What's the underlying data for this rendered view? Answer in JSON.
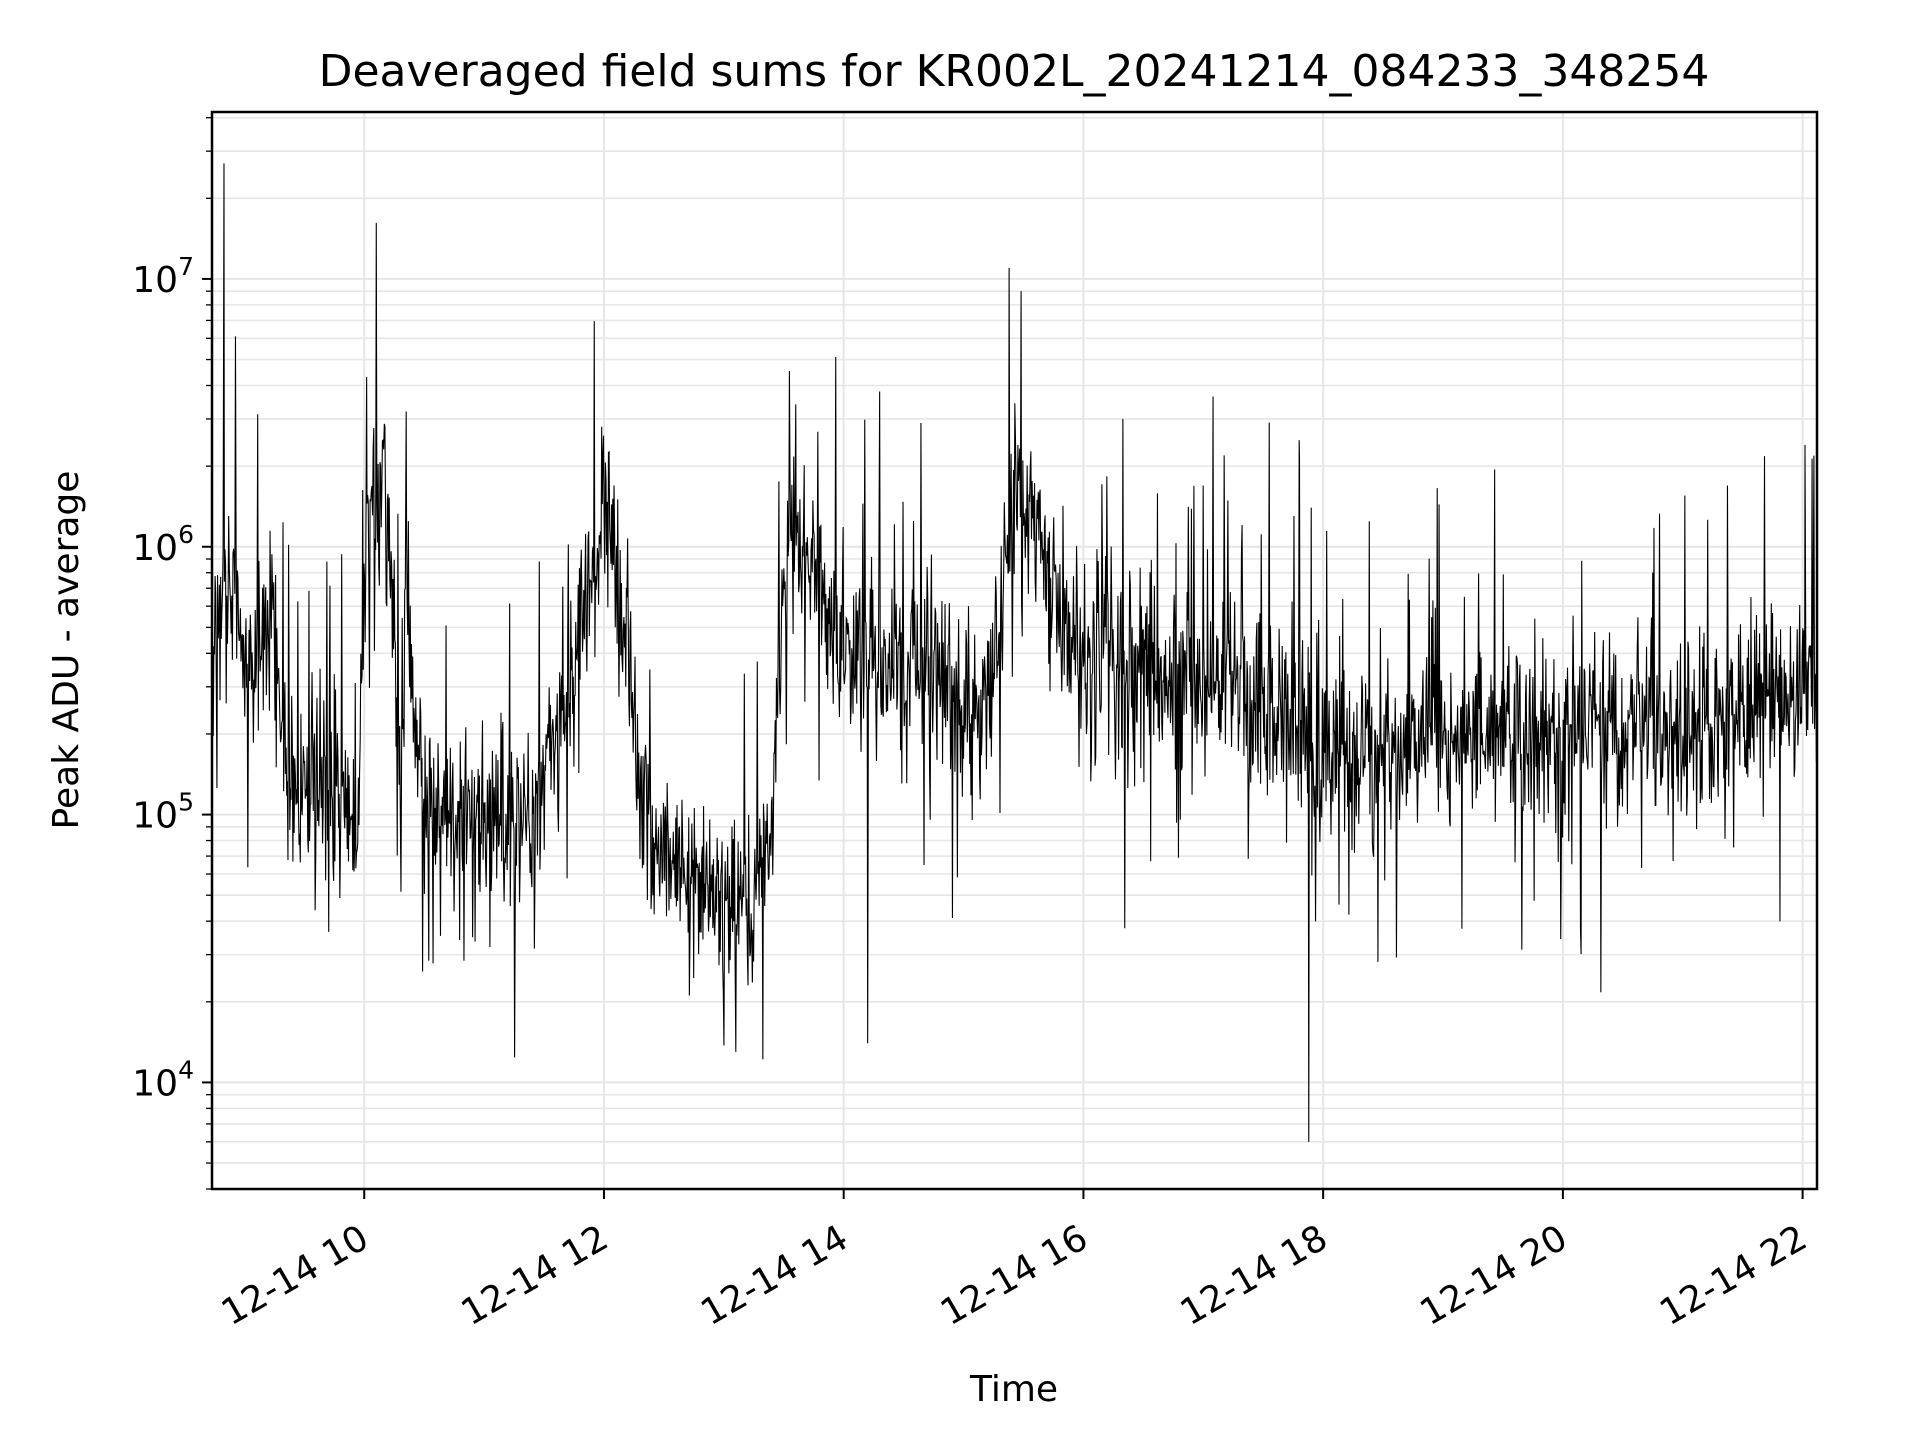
{
  "chart_data": {
    "type": "line",
    "title": "Deaveraged field sums for KR002L_20241214_084233_348254",
    "xlabel": "Time",
    "ylabel": "Peak ADU - average",
    "yscale": "log",
    "x_unit": "hours, 2024-12-14",
    "xlim": [
      8.73,
      22.12
    ],
    "ylim": [
      4000,
      42000000
    ],
    "grid": true,
    "legend": "none",
    "line_color": "#000000",
    "grid_color": "#e6e6e6",
    "xticks": [
      {
        "value": 10,
        "label": "12-14 10"
      },
      {
        "value": 12,
        "label": "12-14 12"
      },
      {
        "value": 14,
        "label": "12-14 14"
      },
      {
        "value": 16,
        "label": "12-14 16"
      },
      {
        "value": 18,
        "label": "12-14 18"
      },
      {
        "value": 20,
        "label": "12-14 20"
      },
      {
        "value": 22,
        "label": "12-14 22"
      }
    ],
    "yticks": [
      {
        "value": 10000,
        "base": "10",
        "exp": "4"
      },
      {
        "value": 100000,
        "base": "10",
        "exp": "5"
      },
      {
        "value": 1000000,
        "base": "10",
        "exp": "6"
      },
      {
        "value": 10000000,
        "base": "10",
        "exp": "7"
      }
    ],
    "series": [
      {
        "x": [
          8.73,
          8.78,
          8.83,
          8.88,
          8.93,
          8.98,
          9.05,
          9.15,
          9.25,
          9.35,
          9.45,
          9.55,
          9.65,
          9.75,
          9.85,
          9.95,
          10.0,
          10.05,
          10.1,
          10.15,
          10.2,
          10.25,
          10.3,
          10.35,
          10.4,
          10.5,
          10.6,
          10.7,
          10.8,
          10.9,
          11.0,
          11.1,
          11.2,
          11.3,
          11.4,
          11.5,
          11.6,
          11.7,
          11.8,
          11.9,
          12.0,
          12.1,
          12.2,
          12.3,
          12.4,
          12.5,
          12.6,
          12.7,
          12.8,
          12.9,
          13.0,
          13.1,
          13.2,
          13.3,
          13.4,
          13.5,
          13.6,
          13.7,
          13.8,
          13.9,
          14.0,
          14.1,
          14.2,
          14.3,
          14.4,
          14.5,
          14.6,
          14.7,
          14.8,
          14.9,
          15.0,
          15.1,
          15.2,
          15.3,
          15.4,
          15.5,
          15.6,
          15.7,
          15.8,
          15.9,
          16.0,
          16.2,
          16.4,
          16.6,
          16.8,
          17.0,
          17.2,
          17.4,
          17.6,
          17.8,
          17.9,
          18.0,
          18.2,
          18.4,
          18.6,
          18.8,
          19.0,
          19.2,
          19.4,
          19.6,
          19.8,
          20.0,
          20.2,
          20.4,
          20.6,
          20.8,
          21.0,
          21.2,
          21.4,
          21.6,
          21.8,
          22.0,
          22.12
        ],
        "y": [
          300000,
          600000,
          800000,
          700000,
          600000,
          350000,
          300000,
          400000,
          500000,
          150000,
          120000,
          130000,
          120000,
          110000,
          100000,
          110000,
          900000,
          1500000,
          1600000,
          1400000,
          1200000,
          400000,
          150000,
          700000,
          300000,
          110000,
          90000,
          100000,
          95000,
          90000,
          100000,
          95000,
          90000,
          90000,
          100000,
          120000,
          250000,
          300000,
          500000,
          900000,
          1200000,
          900000,
          500000,
          120000,
          80000,
          70000,
          60000,
          55000,
          60000,
          50000,
          55000,
          45000,
          55000,
          60000,
          80000,
          1000000,
          1300000,
          900000,
          700000,
          500000,
          400000,
          450000,
          400000,
          350000,
          380000,
          350000,
          400000,
          380000,
          350000,
          300000,
          250000,
          220000,
          300000,
          500000,
          1400000,
          1600000,
          1200000,
          800000,
          600000,
          450000,
          400000,
          350000,
          300000,
          320000,
          300000,
          300000,
          280000,
          260000,
          250000,
          230000,
          200000,
          190000,
          180000,
          170000,
          180000,
          200000,
          190000,
          180000,
          200000,
          210000,
          190000,
          200000,
          220000,
          210000,
          200000,
          230000,
          220000,
          200000,
          230000,
          250000,
          280000,
          320000,
          300000
        ]
      }
    ],
    "annotations": [
      {
        "x": 8.83,
        "y": 27000000
      },
      {
        "x": 15.38,
        "y": 11000000
      },
      {
        "x": 15.48,
        "y": 9000000
      },
      {
        "x": 10.02,
        "y": 4300000
      },
      {
        "x": 10.35,
        "y": 3200000
      },
      {
        "x": 13.6,
        "y": 3400000
      },
      {
        "x": 14.3,
        "y": 3800000
      },
      {
        "x": 17.8,
        "y": 2500000
      },
      {
        "x": 22.02,
        "y": 2400000
      },
      {
        "x": 17.88,
        "y": 6000
      },
      {
        "x": 13.1,
        "y": 13000
      },
      {
        "x": 14.2,
        "y": 14000
      }
    ]
  }
}
